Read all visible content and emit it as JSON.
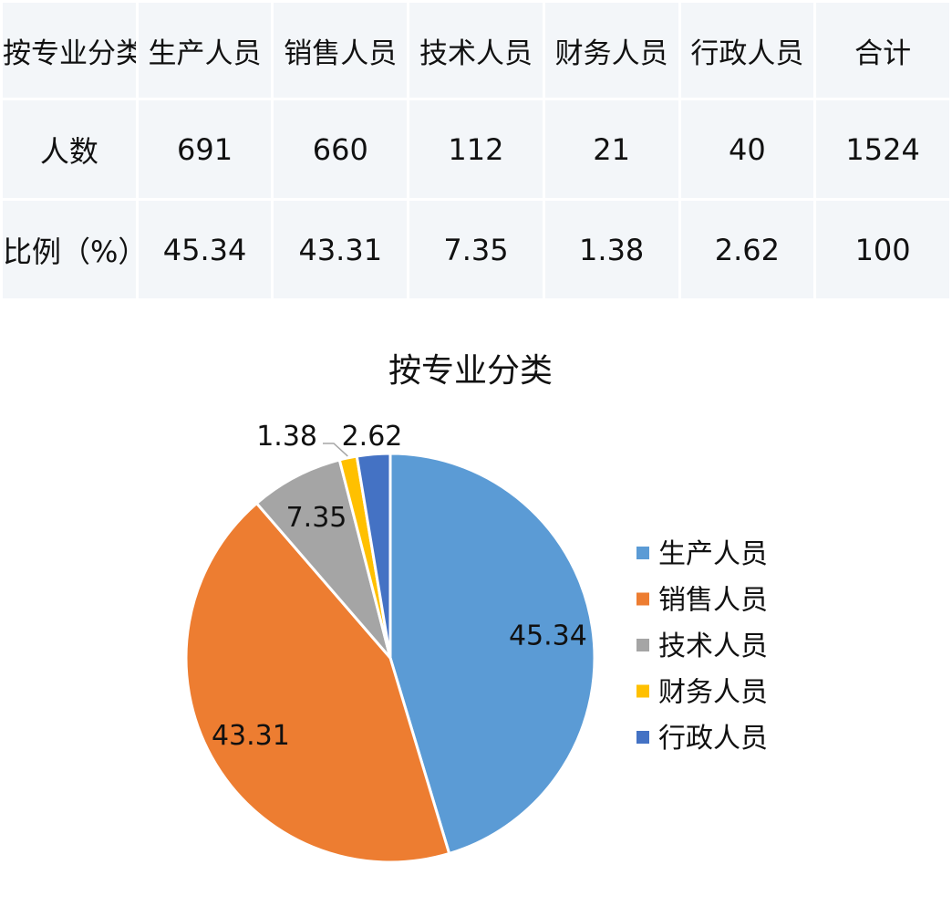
{
  "table": {
    "header": [
      "按专业分类",
      "生产人员",
      "销售人员",
      "技术人员",
      "财务人员",
      "行政人员",
      "合计"
    ],
    "rows": [
      [
        "人数",
        "691",
        "660",
        "112",
        "21",
        "40",
        "1524"
      ],
      [
        "比例（%）",
        "45.34",
        "43.31",
        "7.35",
        "1.38",
        "2.62",
        "100"
      ]
    ]
  },
  "chart_data": {
    "type": "pie",
    "title": "按专业分类",
    "categories": [
      "生产人员",
      "销售人员",
      "技术人员",
      "财务人员",
      "行政人员"
    ],
    "values": [
      45.34,
      43.31,
      7.35,
      1.38,
      2.62
    ],
    "labels": [
      "45.34",
      "43.31",
      "7.35",
      "1.38",
      "2.62"
    ],
    "colors": [
      "#5b9bd5",
      "#ed7d31",
      "#a5a5a5",
      "#ffc000",
      "#4472c4"
    ],
    "legend": "right"
  }
}
